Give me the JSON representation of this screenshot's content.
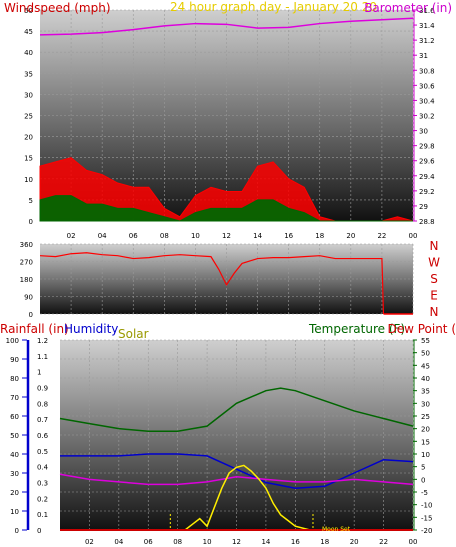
{
  "header": {
    "windspeed_title": "Windspeed (mph)",
    "window_title": "24 hour graph day - January 20 20",
    "barometer_title": "Barometer (in)"
  },
  "bottom_header": {
    "rainfall_title": "Rainfall (in)",
    "humidity_title": "Humidity",
    "solar_title": "Solar",
    "temperature_title": "Temperature (F)",
    "dewpoint_title": "Dew Point ("
  },
  "annotations": {
    "moon_set": "Moon Set"
  },
  "chart_data": [
    {
      "type": "area",
      "id": "wind-barometer",
      "title": "Windspeed (mph)",
      "x_tick_labels": [
        "02",
        "04",
        "06",
        "08",
        "10",
        "12",
        "14",
        "16",
        "18",
        "20",
        "22",
        "00"
      ],
      "left_axis": {
        "label": "Windspeed (mph)",
        "ylim": [
          0,
          50
        ],
        "ticks": [
          0,
          5,
          10,
          15,
          20,
          25,
          30,
          35,
          40,
          45,
          50
        ]
      },
      "right_axis": {
        "label": "Barometer (in)",
        "ylim": [
          28.8,
          31.6
        ],
        "ticks": [
          "28.8",
          "29",
          "29.2",
          "29.4",
          "29.6",
          "29.8",
          "30",
          "30.2",
          "30.4",
          "30.6",
          "30.8",
          "31",
          "31.2",
          "31.4",
          "31.6"
        ]
      },
      "grid": true,
      "colors": {
        "gust": "#ff0000",
        "wind_avg": "#006600",
        "wind_low": "#0000cc",
        "barometer": "#dd00dd"
      },
      "series": [
        {
          "name": "Barometer (in)",
          "axis": "right",
          "x": [
            0,
            2,
            4,
            6,
            8,
            10,
            12,
            14,
            16,
            18,
            20,
            22,
            24
          ],
          "values": [
            31.27,
            31.28,
            31.3,
            31.34,
            31.39,
            31.42,
            31.41,
            31.36,
            31.37,
            31.42,
            31.45,
            31.47,
            31.49
          ]
        },
        {
          "name": "Wind gust",
          "axis": "left",
          "x": [
            0,
            1,
            2,
            3,
            4,
            5,
            6,
            7,
            8,
            9,
            10,
            11,
            12,
            13,
            14,
            15,
            16,
            17,
            18,
            19,
            20,
            21,
            22,
            23,
            24
          ],
          "values": [
            13,
            14,
            15,
            12,
            11,
            9,
            8,
            8,
            3,
            1,
            6,
            8,
            7,
            7,
            13,
            14,
            10,
            8,
            1,
            0,
            0,
            0,
            0,
            1,
            0
          ]
        },
        {
          "name": "Wind average",
          "axis": "left",
          "x": [
            0,
            1,
            2,
            3,
            4,
            5,
            6,
            7,
            8,
            9,
            10,
            11,
            12,
            13,
            14,
            15,
            16,
            17,
            18,
            19,
            20,
            21,
            22,
            23,
            24
          ],
          "values": [
            5,
            6,
            6,
            4,
            4,
            3,
            3,
            2,
            1,
            0,
            2,
            3,
            3,
            3,
            5,
            5,
            3,
            2,
            0,
            0,
            0,
            0,
            0,
            0,
            0
          ]
        }
      ]
    },
    {
      "type": "line",
      "id": "wind-direction",
      "x_tick_labels": [],
      "left_axis": {
        "ylim": [
          0,
          360
        ],
        "ticks": [
          0,
          90,
          180,
          270,
          360
        ]
      },
      "direction_labels": [
        "N",
        "W",
        "S",
        "E",
        "N"
      ],
      "grid": true,
      "series": [
        {
          "name": "Wind direction",
          "color": "#ff0000",
          "x": [
            0,
            1,
            2,
            3,
            4,
            5,
            6,
            7,
            8,
            9,
            10,
            11,
            11.5,
            12,
            12.5,
            13,
            14,
            15,
            16,
            17,
            18,
            19,
            20,
            21,
            22,
            22.1
          ],
          "values": [
            300,
            295,
            310,
            315,
            305,
            300,
            285,
            290,
            300,
            305,
            300,
            295,
            230,
            150,
            210,
            260,
            285,
            290,
            290,
            295,
            300,
            285,
            285,
            285,
            285,
            0
          ]
        }
      ]
    },
    {
      "type": "line",
      "id": "rain-humidity-solar-temp",
      "x_tick_labels": [
        "02",
        "04",
        "06",
        "08",
        "10",
        "12",
        "14",
        "16",
        "18",
        "20",
        "22",
        "00"
      ],
      "axes": {
        "rainfall": {
          "label": "Rainfall (in)",
          "ylim": [
            0,
            1.2
          ],
          "ticks": [
            "0",
            "0.1",
            "0.2",
            "0.3",
            "0.4",
            "0.5",
            "0.6",
            "0.7",
            "0.8",
            "0.9",
            "1",
            "1.1",
            "1.2"
          ]
        },
        "humidity": {
          "label": "Humidity",
          "ylim": [
            0,
            100
          ],
          "ticks": [
            0,
            10,
            20,
            30,
            40,
            50,
            60,
            70,
            80,
            90,
            100
          ]
        },
        "temperature": {
          "label": "Temperature (F)",
          "ylim": [
            -20,
            55
          ],
          "ticks": [
            -20,
            -15,
            -10,
            -5,
            0,
            5,
            10,
            15,
            20,
            25,
            30,
            35,
            40,
            45,
            50,
            55
          ]
        }
      },
      "grid": true,
      "series": [
        {
          "name": "Temperature (F)",
          "color": "#006600",
          "axis": "temperature",
          "x": [
            0,
            2,
            4,
            6,
            8,
            10,
            12,
            14,
            15,
            16,
            18,
            20,
            22,
            24
          ],
          "values": [
            24,
            22,
            20,
            19,
            19,
            21,
            30,
            35,
            36,
            35,
            31,
            27,
            24,
            21
          ]
        },
        {
          "name": "Humidity",
          "color": "#0000cc",
          "axis": "humidity",
          "x": [
            0,
            2,
            4,
            6,
            8,
            10,
            12,
            14,
            16,
            18,
            20,
            22,
            24
          ],
          "values": [
            39,
            39,
            39,
            40,
            40,
            39,
            32,
            25,
            22,
            23,
            30,
            37,
            36
          ]
        },
        {
          "name": "Dew Point",
          "color": "#dd00dd",
          "axis": "temperature",
          "x": [
            0,
            2,
            4,
            6,
            8,
            10,
            12,
            14,
            16,
            18,
            20,
            22,
            24
          ],
          "values": [
            2,
            0,
            -1,
            -2,
            -2,
            -1,
            1,
            0,
            -1,
            -1,
            0,
            -1,
            -2
          ]
        },
        {
          "name": "Solar",
          "color": "#ffee00",
          "axis": "humidity",
          "x": [
            8.5,
            9,
            9.5,
            10,
            10.5,
            11,
            11.5,
            12,
            12.5,
            13,
            13.5,
            14,
            14.5,
            15,
            15.5,
            16,
            17
          ],
          "values": [
            0,
            3,
            6,
            2,
            12,
            22,
            30,
            33,
            34,
            31,
            27,
            22,
            14,
            8,
            5,
            2,
            0
          ]
        },
        {
          "name": "Rainfall (in)",
          "color": "#cc0000",
          "axis": "rainfall",
          "x": [
            0,
            24
          ],
          "values": [
            0,
            0
          ]
        }
      ]
    }
  ]
}
